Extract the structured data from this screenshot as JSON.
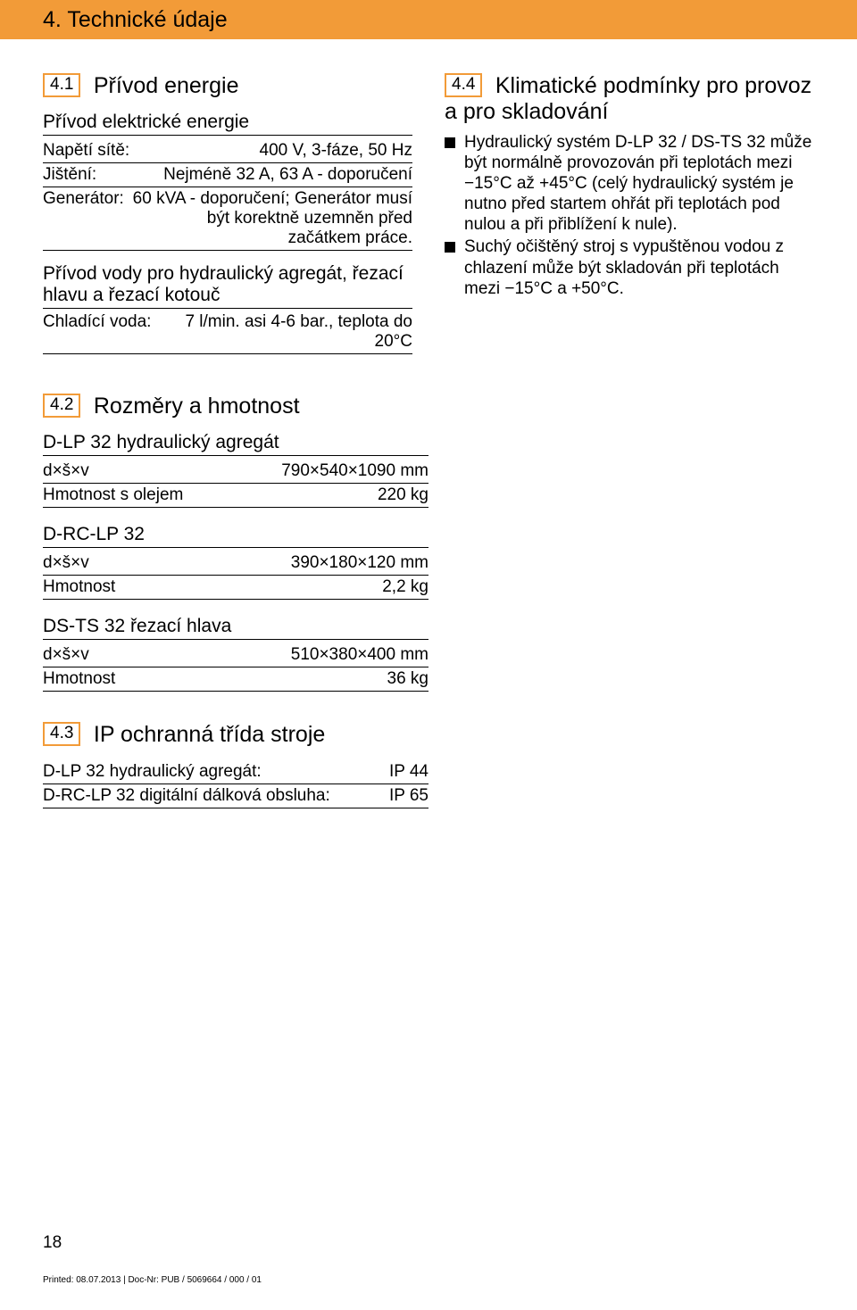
{
  "header": {
    "title": "4. Technické údaje"
  },
  "section41": {
    "num": "4.1",
    "title": "Přívod energie",
    "subhead1": "Přívod elektrické energie",
    "rows1": [
      {
        "label": "Napětí sítě:",
        "value": "400 V, 3-fáze, 50 Hz"
      },
      {
        "label": "Jištění:",
        "value": "Nejméně 32 A, 63 A - doporučení"
      },
      {
        "label": "Generátor:",
        "value": "60 kVA - doporučení; Generátor musí být korektně uzemněn před začátkem práce."
      }
    ],
    "subhead2": "Přívod vody pro hydraulický agregát, řezací hlavu a řezací kotouč",
    "rows2": [
      {
        "label": "Chladící voda:",
        "value": "7 l/min. asi 4-6 bar., teplota do 20°C"
      }
    ]
  },
  "section44": {
    "num": "4.4",
    "title": "Klimatické podmínky pro provoz a pro skladování",
    "bullets": [
      "Hydraulický systém D-LP 32 / DS-TS 32 může být normálně provozován při teplotách mezi −15°C až +45°C (celý hydraulický systém je nutno před startem ohřát při teplotách pod nulou a při přiblížení k nule).",
      "Suchý očištěný stroj s vypuštěnou vodou z chlazení může být skladován při teplotách mezi −15°C a +50°C."
    ]
  },
  "section42": {
    "num": "4.2",
    "title": "Rozměry a hmotnost",
    "groups": [
      {
        "head": "D-LP 32 hydraulický agregát",
        "rows": [
          {
            "label": "d×š×v",
            "value": "790×540×1090 mm"
          },
          {
            "label": "Hmotnost s olejem",
            "value": "220 kg"
          }
        ]
      },
      {
        "head": "D-RC-LP 32",
        "rows": [
          {
            "label": "d×š×v",
            "value": "390×180×120 mm"
          },
          {
            "label": "Hmotnost",
            "value": "2,2 kg"
          }
        ]
      },
      {
        "head": "DS-TS 32 řezací hlava",
        "rows": [
          {
            "label": "d×š×v",
            "value": "510×380×400 mm"
          },
          {
            "label": "Hmotnost",
            "value": "36 kg"
          }
        ]
      }
    ]
  },
  "section43": {
    "num": "4.3",
    "title": "IP ochranná třída stroje",
    "rows": [
      {
        "label": "D-LP 32 hydraulický agregát:",
        "value": "IP 44"
      },
      {
        "label": "D-RC-LP 32 digitální dálková obsluha:",
        "value": "IP 65"
      }
    ]
  },
  "pageNumber": "18",
  "footer": "Printed: 08.07.2013 | Doc-Nr: PUB / 5069664 / 000 / 01"
}
